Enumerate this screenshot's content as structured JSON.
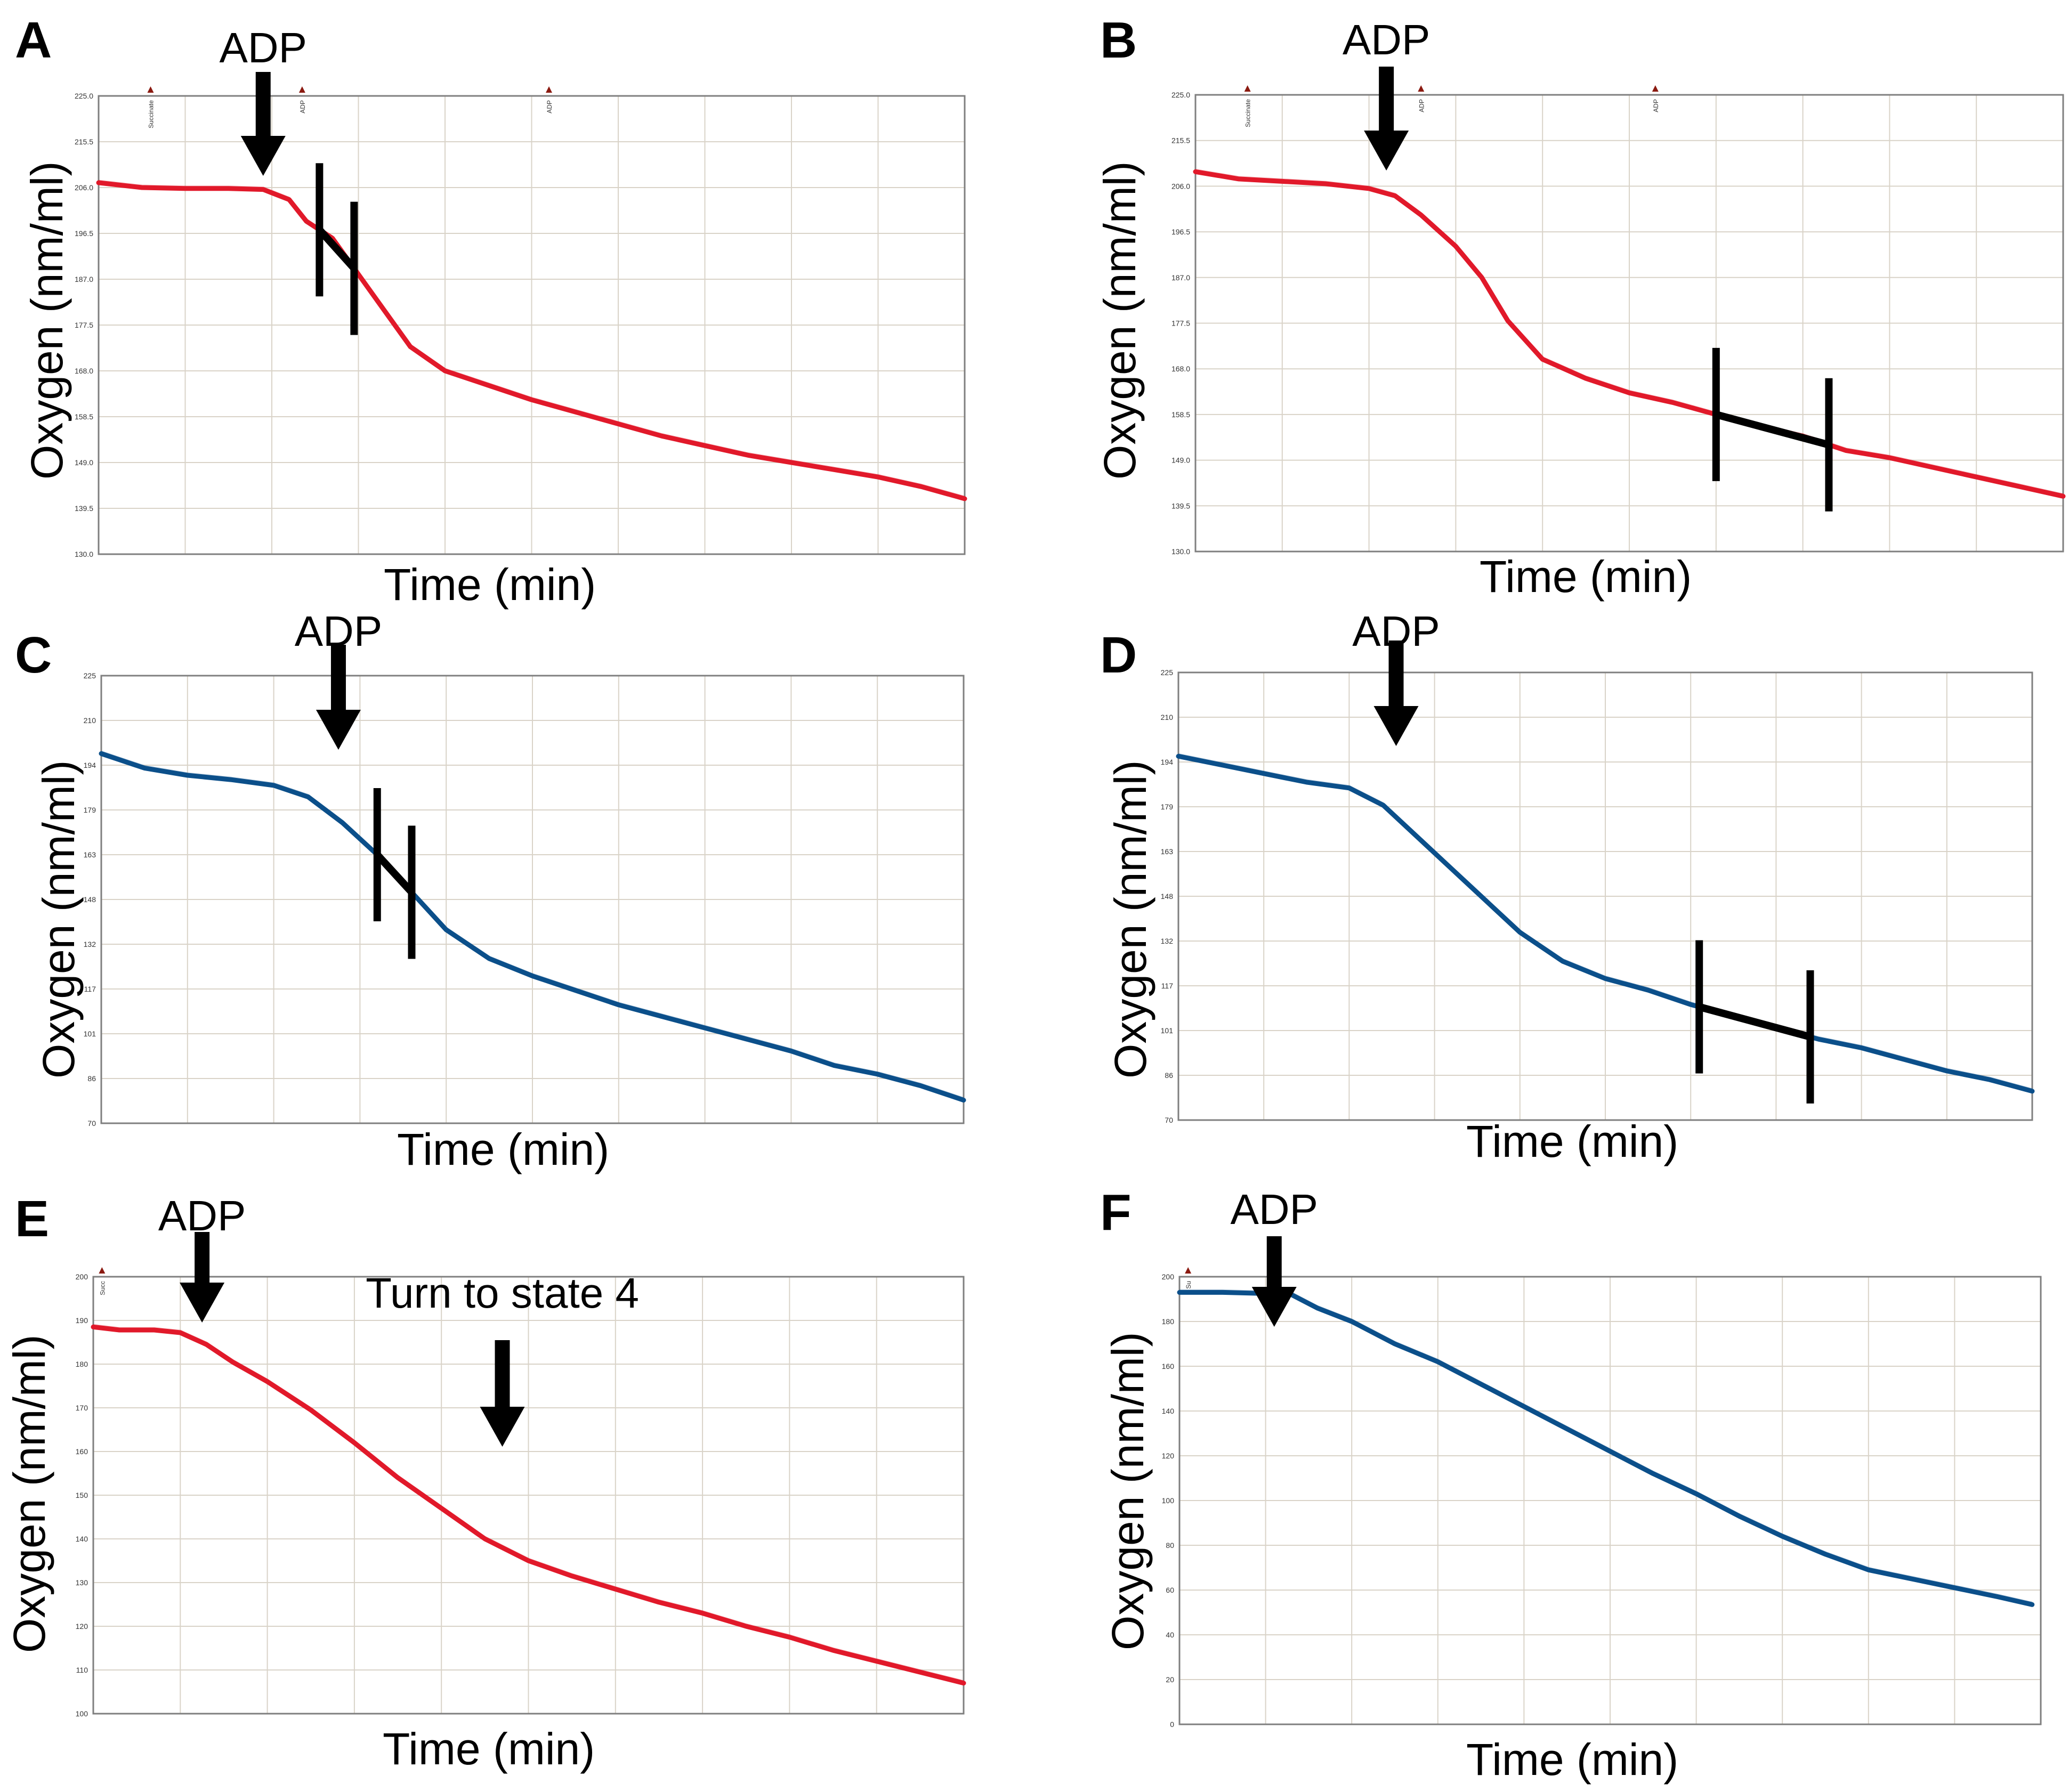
{
  "figure": {
    "colors": {
      "red": "#e1192a",
      "blue": "#0b4f8a",
      "axis": "#7f7f7f",
      "grid": "#d9d3c8",
      "marker": "#8b1a10",
      "rate": "#000000"
    }
  },
  "chart_data": [
    {
      "panel": "A",
      "type": "line",
      "color": "red",
      "xlabel": "Time (min)",
      "ylabel": "Oxygen (nm/ml)",
      "ylim": [
        130.0,
        225.0
      ],
      "yticks": [
        "225.0",
        "215.5",
        "206.0",
        "196.5",
        "187.0",
        "177.5",
        "168.0",
        "158.5",
        "149.0",
        "139.5",
        "130.0"
      ],
      "xlim": [
        0,
        10
      ],
      "xgrid": 10,
      "event_markers": [
        {
          "x": 0.6,
          "label": "Succinate"
        },
        {
          "x": 2.35,
          "label": "ADP"
        },
        {
          "x": 5.2,
          "label": "ADP"
        }
      ],
      "series": [
        {
          "name": "oxygen",
          "x": [
            0,
            0.5,
            1,
            1.5,
            1.9,
            2.2,
            2.4,
            2.7,
            3.0,
            3.3,
            3.6,
            4.0,
            4.5,
            5.0,
            5.5,
            6.0,
            6.5,
            7.0,
            7.5,
            8.0,
            8.5,
            9.0,
            9.5,
            10
          ],
          "values": [
            207.0,
            206.0,
            205.8,
            205.8,
            205.6,
            203.5,
            199.0,
            195.5,
            188.0,
            180.5,
            173.0,
            168.0,
            165.0,
            162.0,
            159.5,
            157.0,
            154.5,
            152.5,
            150.5,
            149.0,
            147.5,
            146.0,
            144.0,
            141.5
          ]
        }
      ],
      "rate_segment": [
        2.55,
        2.95
      ],
      "annotations": [
        {
          "label": "ADP",
          "x": 1.9
        }
      ]
    },
    {
      "panel": "B",
      "type": "line",
      "color": "red",
      "xlabel": "Time (min)",
      "ylabel": "Oxygen (nm/ml)",
      "ylim": [
        130.0,
        225.0
      ],
      "yticks": [
        "225.0",
        "215.5",
        "206.0",
        "196.5",
        "187.0",
        "177.5",
        "168.0",
        "158.5",
        "149.0",
        "139.5",
        "130.0"
      ],
      "xlim": [
        0,
        10
      ],
      "xgrid": 10,
      "event_markers": [
        {
          "x": 0.6,
          "label": "Succinate"
        },
        {
          "x": 2.6,
          "label": "ADP"
        },
        {
          "x": 5.3,
          "label": "ADP"
        }
      ],
      "series": [
        {
          "name": "oxygen",
          "x": [
            0,
            0.5,
            1,
            1.5,
            2.0,
            2.3,
            2.6,
            3.0,
            3.3,
            3.6,
            4.0,
            4.5,
            5.0,
            5.5,
            6.0,
            6.5,
            7.0,
            7.5,
            8.0,
            8.5,
            9.0,
            9.5,
            10
          ],
          "values": [
            209.0,
            207.5,
            207.0,
            206.5,
            205.5,
            204.0,
            200.0,
            193.5,
            187.0,
            178.0,
            170.0,
            166.0,
            163.0,
            161.0,
            158.5,
            156.0,
            154.0,
            151.0,
            149.5,
            147.5,
            145.5,
            143.5,
            141.5
          ]
        }
      ],
      "rate_segment": [
        6.0,
        7.3
      ],
      "annotations": [
        {
          "label": "ADP",
          "x": 2.2
        }
      ]
    },
    {
      "panel": "C",
      "type": "line",
      "color": "blue",
      "xlabel": "Time (min)",
      "ylabel": "Oxygen (nm/ml)",
      "ylim": [
        70,
        225
      ],
      "yticks": [
        "225",
        "210",
        "194",
        "179",
        "163",
        "148",
        "132",
        "117",
        "101",
        "86",
        "70"
      ],
      "xlim": [
        0,
        10
      ],
      "xgrid": 10,
      "event_markers": [],
      "series": [
        {
          "name": "oxygen",
          "x": [
            0,
            0.5,
            1,
            1.5,
            2.0,
            2.4,
            2.8,
            3.2,
            3.6,
            4.0,
            4.5,
            5.0,
            5.5,
            6.0,
            6.5,
            7.0,
            7.5,
            8.0,
            8.5,
            9.0,
            9.5,
            10
          ],
          "values": [
            198.0,
            193.0,
            190.5,
            189.0,
            187.0,
            183.0,
            174.0,
            163.0,
            150.0,
            137.0,
            127.0,
            121.0,
            116.0,
            111.0,
            107.0,
            103.0,
            99.0,
            95.0,
            90.0,
            87.0,
            83.0,
            78.0
          ]
        }
      ],
      "rate_segment": [
        3.2,
        3.6
      ],
      "annotations": [
        {
          "label": "ADP",
          "x": 2.75
        }
      ]
    },
    {
      "panel": "D",
      "type": "line",
      "color": "blue",
      "xlabel": "Time (min)",
      "ylabel": "Oxygen (nm/ml)",
      "ylim": [
        70,
        225
      ],
      "yticks": [
        "225",
        "210",
        "194",
        "179",
        "163",
        "148",
        "132",
        "117",
        "101",
        "86",
        "70"
      ],
      "xlim": [
        0,
        10
      ],
      "xgrid": 10,
      "event_markers": [],
      "series": [
        {
          "name": "oxygen",
          "x": [
            0,
            0.5,
            1,
            1.5,
            2.0,
            2.4,
            2.8,
            3.2,
            3.6,
            4.0,
            4.5,
            5.0,
            5.5,
            6.0,
            6.5,
            7.0,
            7.5,
            8.0,
            8.5,
            9.0,
            9.5,
            10
          ],
          "values": [
            196.0,
            193.0,
            190.0,
            187.0,
            185.0,
            179.0,
            168.0,
            157.0,
            146.0,
            135.0,
            125.0,
            119.0,
            115.0,
            110.0,
            106.0,
            102.0,
            98.0,
            95.0,
            91.0,
            87.0,
            84.0,
            80.0
          ]
        }
      ],
      "rate_segment": [
        6.1,
        7.4
      ],
      "annotations": [
        {
          "label": "ADP",
          "x": 2.55
        }
      ]
    },
    {
      "panel": "E",
      "type": "line",
      "color": "red",
      "xlabel": "Time (min)",
      "ylabel": "Oxygen (nm/ml)",
      "ylim": [
        100,
        200
      ],
      "yticks": [
        "200",
        "190",
        "180",
        "170",
        "160",
        "150",
        "140",
        "130",
        "120",
        "110",
        "100"
      ],
      "xlim": [
        0,
        10
      ],
      "xgrid": 10,
      "event_markers": [
        {
          "x": 0.1,
          "label": "Succ"
        }
      ],
      "series": [
        {
          "name": "oxygen",
          "x": [
            0,
            0.3,
            0.7,
            1.0,
            1.3,
            1.6,
            2.0,
            2.5,
            3.0,
            3.5,
            4.0,
            4.5,
            5.0,
            5.5,
            6.0,
            6.5,
            7.0,
            7.5,
            8.0,
            8.5,
            9.0,
            9.5,
            10
          ],
          "values": [
            188.5,
            187.8,
            187.8,
            187.2,
            184.5,
            180.5,
            176.0,
            169.5,
            162.0,
            154.0,
            147.0,
            140.0,
            135.0,
            131.5,
            128.5,
            125.5,
            123.0,
            120.0,
            117.5,
            114.5,
            112.0,
            109.5,
            107.0
          ]
        }
      ],
      "rate_segment": null,
      "annotations": [
        {
          "label": "ADP",
          "x": 1.25
        },
        {
          "label": "Turn to state 4",
          "x": 4.7
        }
      ]
    },
    {
      "panel": "F",
      "type": "line",
      "color": "blue",
      "xlabel": "Time (min)",
      "ylabel": "Oxygen (nm/ml)",
      "ylim": [
        0,
        200
      ],
      "yticks": [
        "200",
        "180",
        "160",
        "140",
        "120",
        "100",
        "80",
        "60",
        "40",
        "20",
        "0"
      ],
      "xlim": [
        0,
        10
      ],
      "xgrid": 10,
      "event_markers": [
        {
          "x": 0.1,
          "label": "Su"
        }
      ],
      "series": [
        {
          "name": "oxygen",
          "x": [
            0,
            0.5,
            1.0,
            1.3,
            1.6,
            2.0,
            2.5,
            3.0,
            3.5,
            4.0,
            4.5,
            5.0,
            5.5,
            6.0,
            6.5,
            7.0,
            7.5,
            8.0,
            8.5,
            9.0,
            9.5,
            9.9
          ],
          "values": [
            193.0,
            193.0,
            192.5,
            192.0,
            186.0,
            180.0,
            170.0,
            162.0,
            152.0,
            142.0,
            132.0,
            122.0,
            112.0,
            103.0,
            93.0,
            84.0,
            76.0,
            69.0,
            65.0,
            61.0,
            57.0,
            53.5
          ]
        }
      ],
      "rate_segment": null,
      "annotations": [
        {
          "label": "ADP",
          "x": 1.1
        }
      ]
    }
  ]
}
